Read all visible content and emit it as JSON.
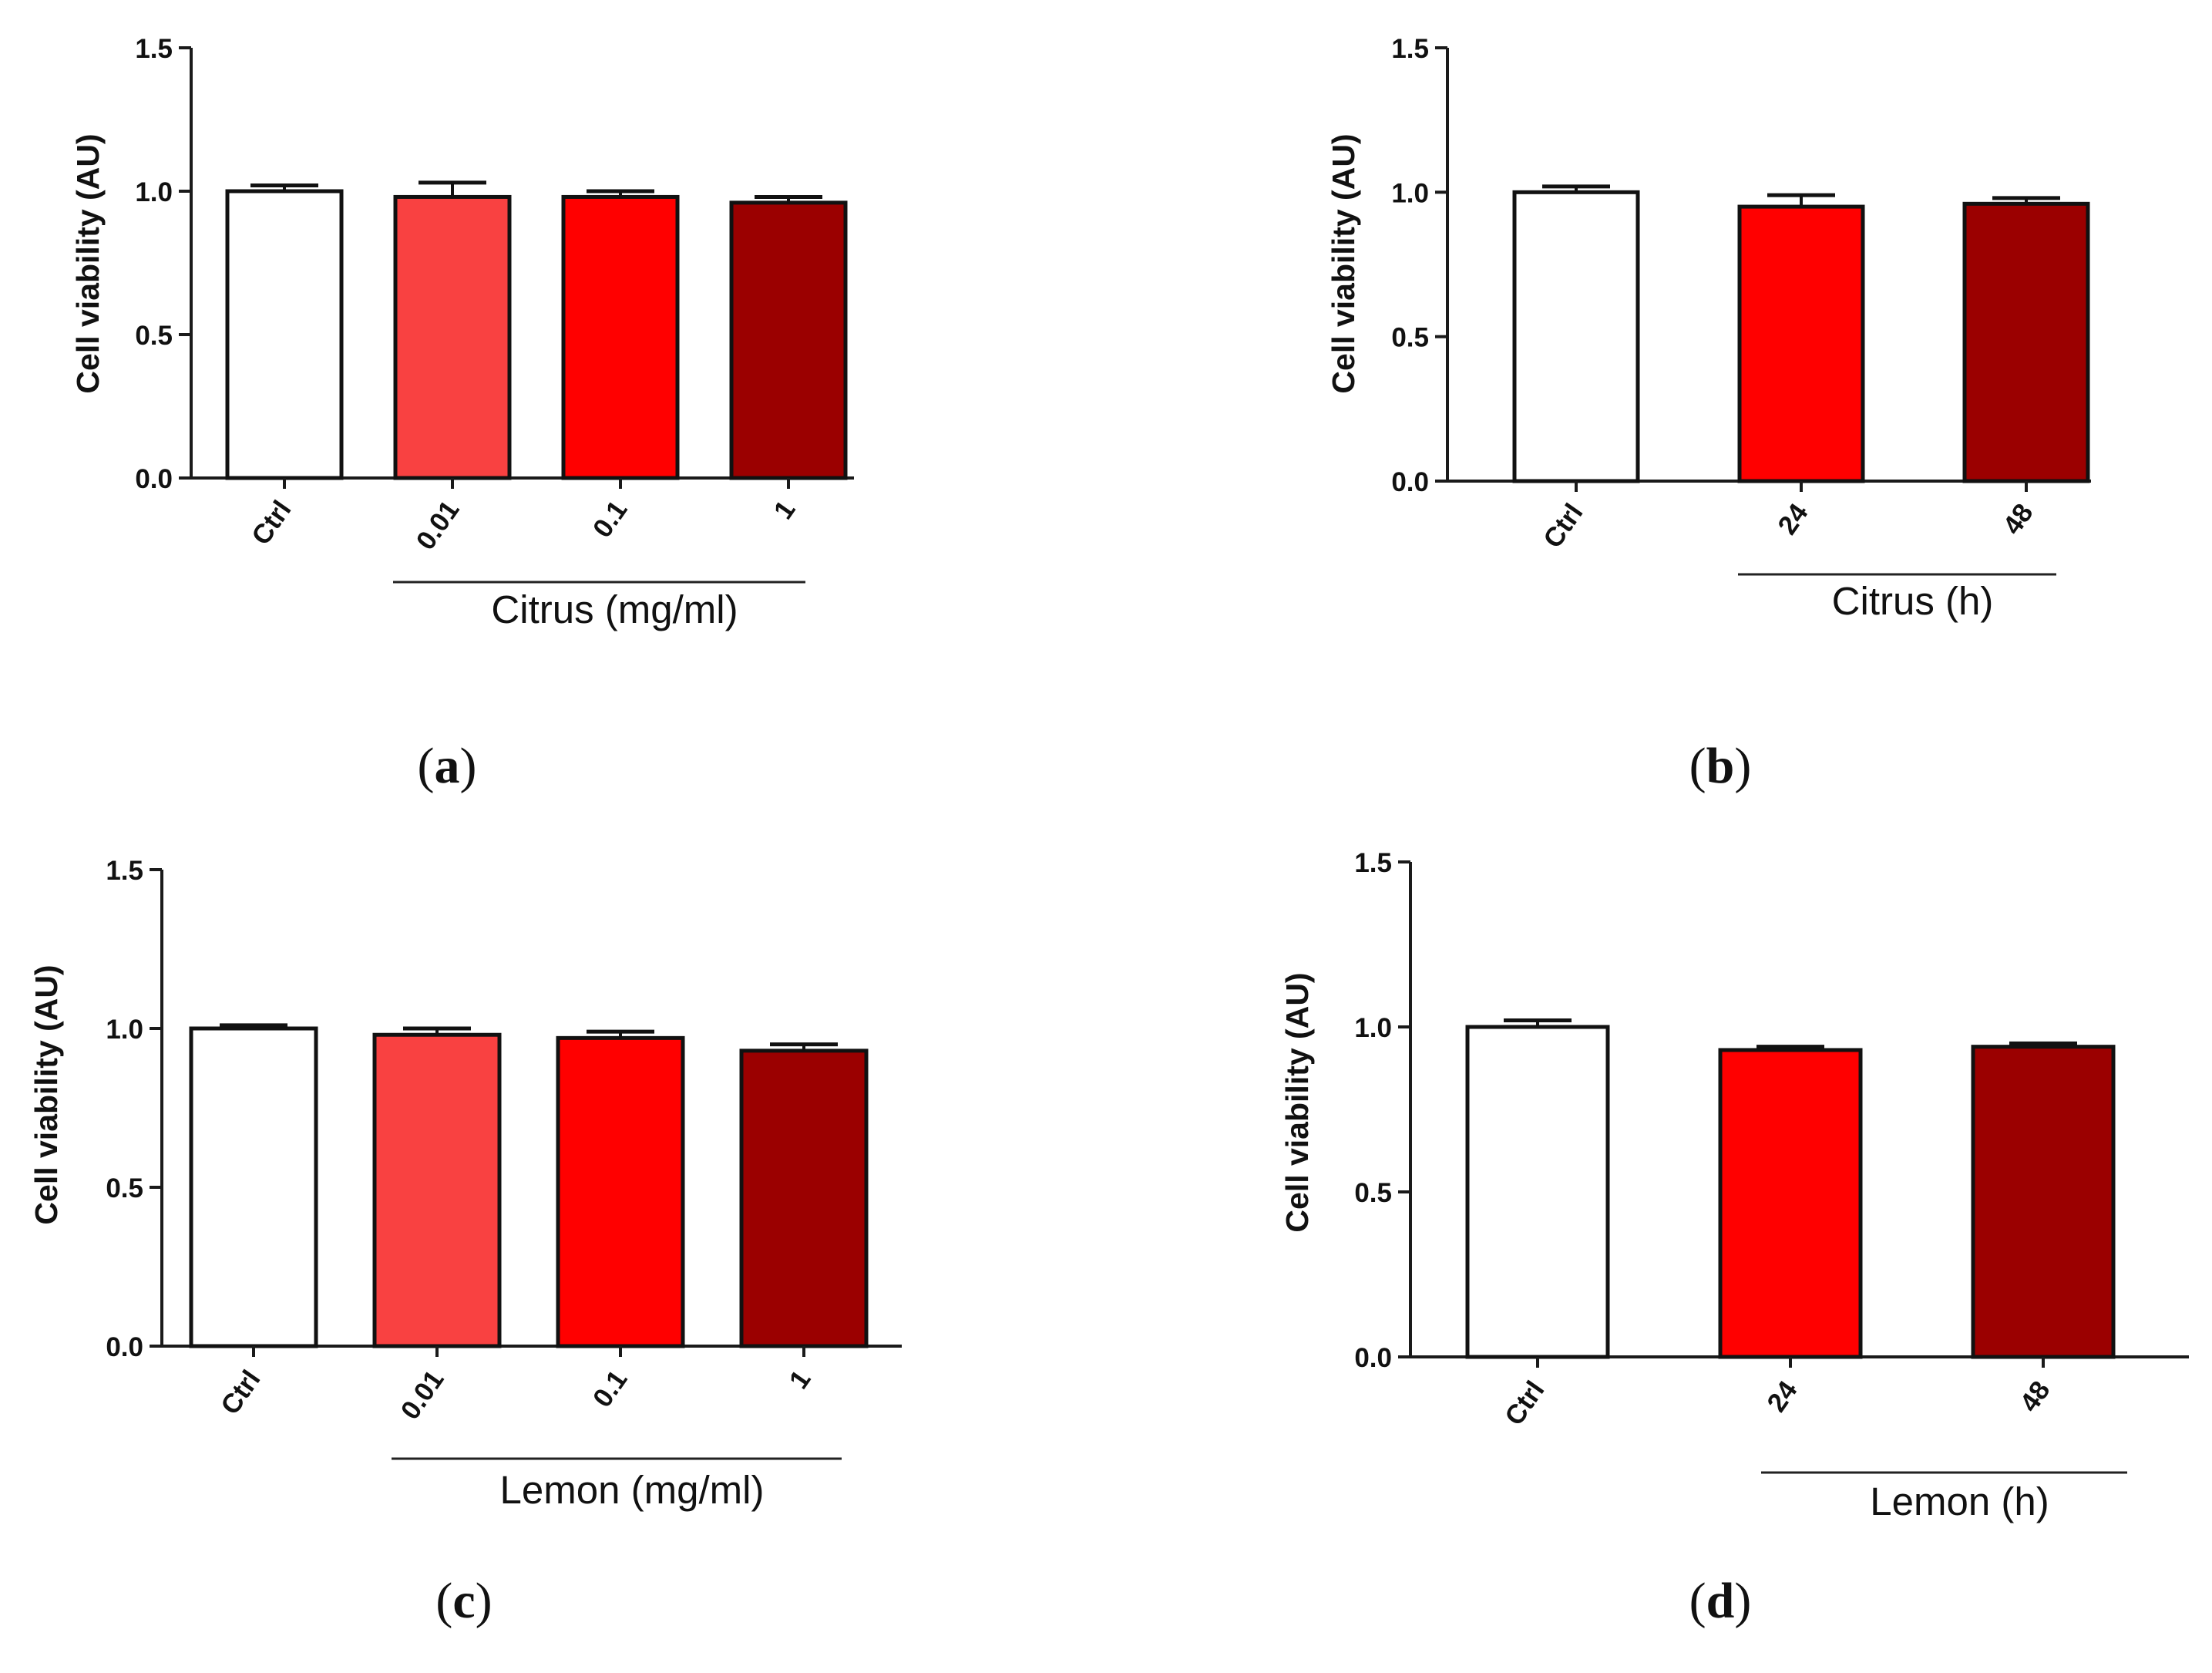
{
  "chart_data": [
    {
      "type": "bar",
      "panel_label": "a",
      "ylabel": "Cell viability (AU)",
      "ylim": [
        0,
        1.5
      ],
      "yticks": [
        0.0,
        0.5,
        1.0,
        1.5
      ],
      "ytick_labels": [
        "0.0",
        "0.5",
        "1.0",
        "1.5"
      ],
      "categories": [
        "Ctrl",
        "0.01",
        "0.1",
        "1"
      ],
      "values": [
        1.0,
        0.98,
        0.98,
        0.96
      ],
      "errors": [
        0.02,
        0.05,
        0.02,
        0.02
      ],
      "colors": [
        "#ffffff",
        "#f94141",
        "#ff0000",
        "#9b0000"
      ],
      "group_label": "Citrus (mg/ml)",
      "group_start": 1,
      "group_end": 3
    },
    {
      "type": "bar",
      "panel_label": "b",
      "ylabel": "Cell viability (AU)",
      "ylim": [
        0,
        1.5
      ],
      "yticks": [
        0.0,
        0.5,
        1.0,
        1.5
      ],
      "ytick_labels": [
        "0.0",
        "0.5",
        "1.0",
        "1.5"
      ],
      "categories": [
        "Ctrl",
        "24",
        "48"
      ],
      "values": [
        1.0,
        0.95,
        0.96
      ],
      "errors": [
        0.02,
        0.04,
        0.02
      ],
      "colors": [
        "#ffffff",
        "#ff0000",
        "#9b0000"
      ],
      "group_label": "Citrus (h)",
      "group_start": 1,
      "group_end": 2
    },
    {
      "type": "bar",
      "panel_label": "c",
      "ylabel": "Cell viability (AU)",
      "ylim": [
        0,
        1.5
      ],
      "yticks": [
        0.0,
        0.5,
        1.0,
        1.5
      ],
      "ytick_labels": [
        "0.0",
        "0.5",
        "1.0",
        "1.5"
      ],
      "categories": [
        "Ctrl",
        "0.01",
        "0.1",
        "1"
      ],
      "values": [
        1.0,
        0.98,
        0.97,
        0.93
      ],
      "errors": [
        0.01,
        0.02,
        0.02,
        0.02
      ],
      "colors": [
        "#ffffff",
        "#f94141",
        "#ff0000",
        "#9b0000"
      ],
      "group_label": "Lemon (mg/ml)",
      "group_start": 1,
      "group_end": 3
    },
    {
      "type": "bar",
      "panel_label": "d",
      "ylabel": "Cell viability (AU)",
      "ylim": [
        0,
        1.5
      ],
      "yticks": [
        0.0,
        0.5,
        1.0,
        1.5
      ],
      "ytick_labels": [
        "0.0",
        "0.5",
        "1.0",
        "1.5"
      ],
      "categories": [
        "Ctrl",
        "24",
        "48"
      ],
      "values": [
        1.0,
        0.93,
        0.94
      ],
      "errors": [
        0.02,
        0.01,
        0.01
      ],
      "colors": [
        "#ffffff",
        "#ff0000",
        "#9b0000"
      ],
      "group_label": "Lemon (h)",
      "group_start": 1,
      "group_end": 2
    }
  ]
}
